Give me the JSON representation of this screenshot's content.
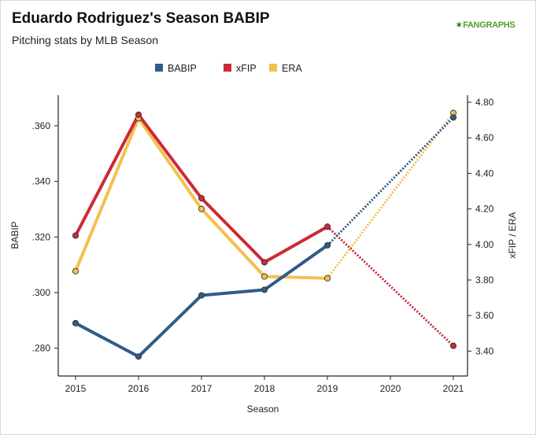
{
  "header": {
    "title": "Eduardo Rodriguez's Season BABIP",
    "subtitle": "Pitching stats by MLB Season",
    "logo": "FANGRAPHS"
  },
  "colors": {
    "babip": "#2e5c8a",
    "xfip": "#cc2a36",
    "era": "#f2c14e"
  },
  "chart_data": {
    "type": "line",
    "xlabel": "Season",
    "ylabel": "BABIP",
    "y2label": "xFIP / ERA",
    "legend_position": "top-center",
    "grid": false,
    "categories": [
      "2015",
      "2016",
      "2017",
      "2018",
      "2019",
      "2020",
      "2021"
    ],
    "x_ticks": [
      "2015",
      "2016",
      "2017",
      "2018",
      "2019",
      "2020",
      "2021"
    ],
    "y_ticks": [
      ".280",
      ".300",
      ".320",
      ".340",
      ".360"
    ],
    "y_tick_values": [
      0.28,
      0.3,
      0.32,
      0.34,
      0.36
    ],
    "y2_ticks": [
      "3.40",
      "3.60",
      "3.80",
      "4.00",
      "4.20",
      "4.40",
      "4.60",
      "4.80"
    ],
    "y2_tick_values": [
      3.4,
      3.6,
      3.8,
      4.0,
      4.2,
      4.4,
      4.6,
      4.8
    ],
    "ylim": [
      0.27,
      0.371
    ],
    "y2lim": [
      3.26,
      4.84
    ],
    "missing_season": "2020",
    "series": [
      {
        "name": "BABIP",
        "axis": "left",
        "key": "babip",
        "x": [
          "2015",
          "2016",
          "2017",
          "2018",
          "2019",
          "2021"
        ],
        "values": [
          0.289,
          0.277,
          0.299,
          0.301,
          0.317,
          0.363
        ]
      },
      {
        "name": "xFIP",
        "axis": "right",
        "key": "xfip",
        "x": [
          "2015",
          "2016",
          "2017",
          "2018",
          "2019",
          "2021"
        ],
        "values": [
          4.05,
          4.73,
          4.26,
          3.9,
          4.1,
          3.43
        ]
      },
      {
        "name": "ERA",
        "axis": "right",
        "key": "era",
        "x": [
          "2015",
          "2016",
          "2017",
          "2018",
          "2019",
          "2021"
        ],
        "values": [
          3.85,
          4.71,
          4.2,
          3.82,
          3.81,
          4.74
        ]
      }
    ]
  }
}
